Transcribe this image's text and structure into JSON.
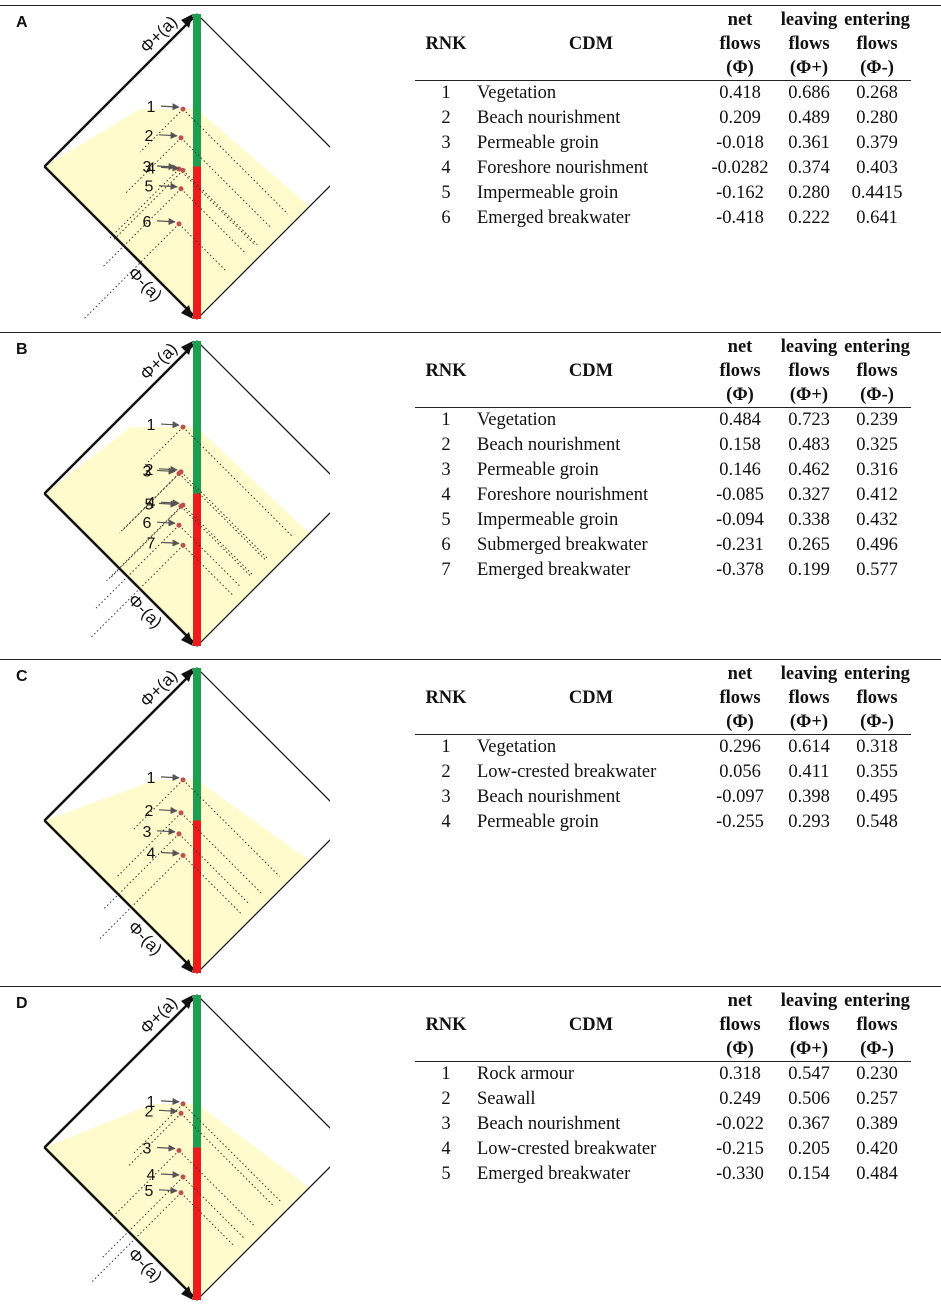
{
  "headers": {
    "rnk": "RNK",
    "cdm": "CDM",
    "net": [
      "net",
      "flows",
      "(Φ)"
    ],
    "leaving": [
      "leaving",
      "flows",
      "(Φ+)"
    ],
    "entering": [
      "entering",
      "flows",
      "(Φ-)"
    ]
  },
  "axis_labels": {
    "top": "Φ+(a)",
    "bottom": "Φ-(a)"
  },
  "colors": {
    "positive_bar": "#1aa050",
    "negative_bar": "#ef1b1b",
    "shading": "#fffbcc",
    "marker": "#c0504d"
  },
  "panels": [
    {
      "letter": "A",
      "rows": [
        {
          "rank": "1",
          "cdm": "Vegetation",
          "net": "0.418",
          "leaving": "0.686",
          "entering": "0.268"
        },
        {
          "rank": "2",
          "cdm": "Beach nourishment",
          "net": "0.209",
          "leaving": "0.489",
          "entering": "0.280"
        },
        {
          "rank": "3",
          "cdm": "Permeable groin",
          "net": "-0.018",
          "leaving": "0.361",
          "entering": "0.379"
        },
        {
          "rank": "4",
          "cdm": "Foreshore nourishment",
          "net": "-0.0282",
          "leaving": "0.374",
          "entering": "0.403"
        },
        {
          "rank": "5",
          "cdm": "Impermeable groin",
          "net": "-0.162",
          "leaving": "0.280",
          "entering": "0.4415"
        },
        {
          "rank": "6",
          "cdm": "Emerged breakwater",
          "net": "-0.418",
          "leaving": "0.222",
          "entering": "0.641"
        }
      ]
    },
    {
      "letter": "B",
      "rows": [
        {
          "rank": "1",
          "cdm": "Vegetation",
          "net": "0.484",
          "leaving": "0.723",
          "entering": "0.239"
        },
        {
          "rank": "2",
          "cdm": "Beach nourishment",
          "net": "0.158",
          "leaving": "0.483",
          "entering": "0.325"
        },
        {
          "rank": "3",
          "cdm": "Permeable groin",
          "net": "0.146",
          "leaving": "0.462",
          "entering": "0.316"
        },
        {
          "rank": "4",
          "cdm": "Foreshore nourishment",
          "net": "-0.085",
          "leaving": "0.327",
          "entering": "0.412"
        },
        {
          "rank": "5",
          "cdm": "Impermeable groin",
          "net": "-0.094",
          "leaving": "0.338",
          "entering": "0.432"
        },
        {
          "rank": "6",
          "cdm": "Submerged breakwater",
          "net": "-0.231",
          "leaving": "0.265",
          "entering": "0.496"
        },
        {
          "rank": "7",
          "cdm": "Emerged breakwater",
          "net": "-0.378",
          "leaving": "0.199",
          "entering": "0.577"
        }
      ]
    },
    {
      "letter": "C",
      "rows": [
        {
          "rank": "1",
          "cdm": "Vegetation",
          "net": "0.296",
          "leaving": "0.614",
          "entering": "0.318"
        },
        {
          "rank": "2",
          "cdm": "Low-crested breakwater",
          "net": "0.056",
          "leaving": "0.411",
          "entering": "0.355"
        },
        {
          "rank": "3",
          "cdm": "Beach nourishment",
          "net": "-0.097",
          "leaving": "0.398",
          "entering": "0.495"
        },
        {
          "rank": "4",
          "cdm": "Permeable groin",
          "net": "-0.255",
          "leaving": "0.293",
          "entering": "0.548"
        }
      ]
    },
    {
      "letter": "D",
      "rows": [
        {
          "rank": "1",
          "cdm": "Rock armour",
          "net": "0.318",
          "leaving": "0.547",
          "entering": "0.230"
        },
        {
          "rank": "2",
          "cdm": "Seawall",
          "net": "0.249",
          "leaving": "0.506",
          "entering": "0.257"
        },
        {
          "rank": "3",
          "cdm": "Beach nourishment",
          "net": "-0.022",
          "leaving": "0.367",
          "entering": "0.389"
        },
        {
          "rank": "4",
          "cdm": "Low-crested breakwater",
          "net": "-0.215",
          "leaving": "0.205",
          "entering": "0.420"
        },
        {
          "rank": "5",
          "cdm": "Emerged breakwater",
          "net": "-0.330",
          "leaving": "0.154",
          "entering": "0.484"
        }
      ]
    }
  ]
}
